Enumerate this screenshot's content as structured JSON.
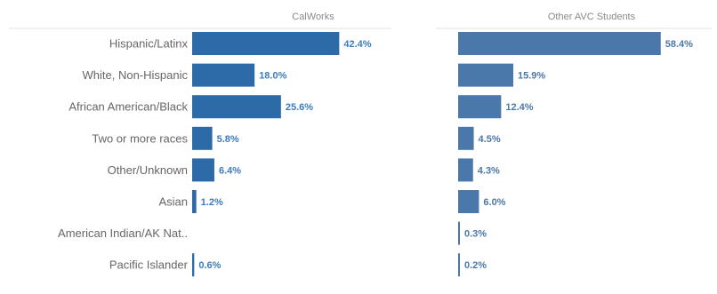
{
  "chart_data": {
    "type": "bar",
    "orientation": "horizontal",
    "categories": [
      "Hispanic/Latinx",
      "White, Non-Hispanic",
      "African American/Black",
      "Two or more races",
      "Other/Unknown",
      "Asian",
      "American Indian/AK Nat..",
      "Pacific Islander"
    ],
    "series": [
      {
        "name": "CalWorks",
        "values": [
          42.4,
          18.0,
          25.6,
          5.8,
          6.4,
          1.2,
          null,
          0.6
        ],
        "labels": [
          "42.4%",
          "18.0%",
          "25.6%",
          "5.8%",
          "6.4%",
          "1.2%",
          "",
          "0.6%"
        ],
        "color": "#2c6aa8"
      },
      {
        "name": "Other AVC Students",
        "values": [
          58.4,
          15.9,
          12.4,
          4.5,
          4.3,
          6.0,
          0.3,
          0.2
        ],
        "labels": [
          "58.4%",
          "15.9%",
          "12.4%",
          "4.5%",
          "4.3%",
          "6.0%",
          "0.3%",
          "0.2%"
        ],
        "color": "#4a78aa"
      }
    ],
    "title": "",
    "xlabel": "",
    "ylabel": "",
    "grid": false,
    "legend": "none",
    "unit": "%"
  },
  "colors": {
    "calworks_bar": "#2c6aa8",
    "other_bar": "#4a78aa",
    "calworks_label": "#3a7cc0",
    "other_label": "#4a78aa",
    "category_text": "#666666",
    "header_text": "#8a8a8a",
    "header_rule": "#e3e3e3",
    "zero_line": "#c8d4e3"
  }
}
